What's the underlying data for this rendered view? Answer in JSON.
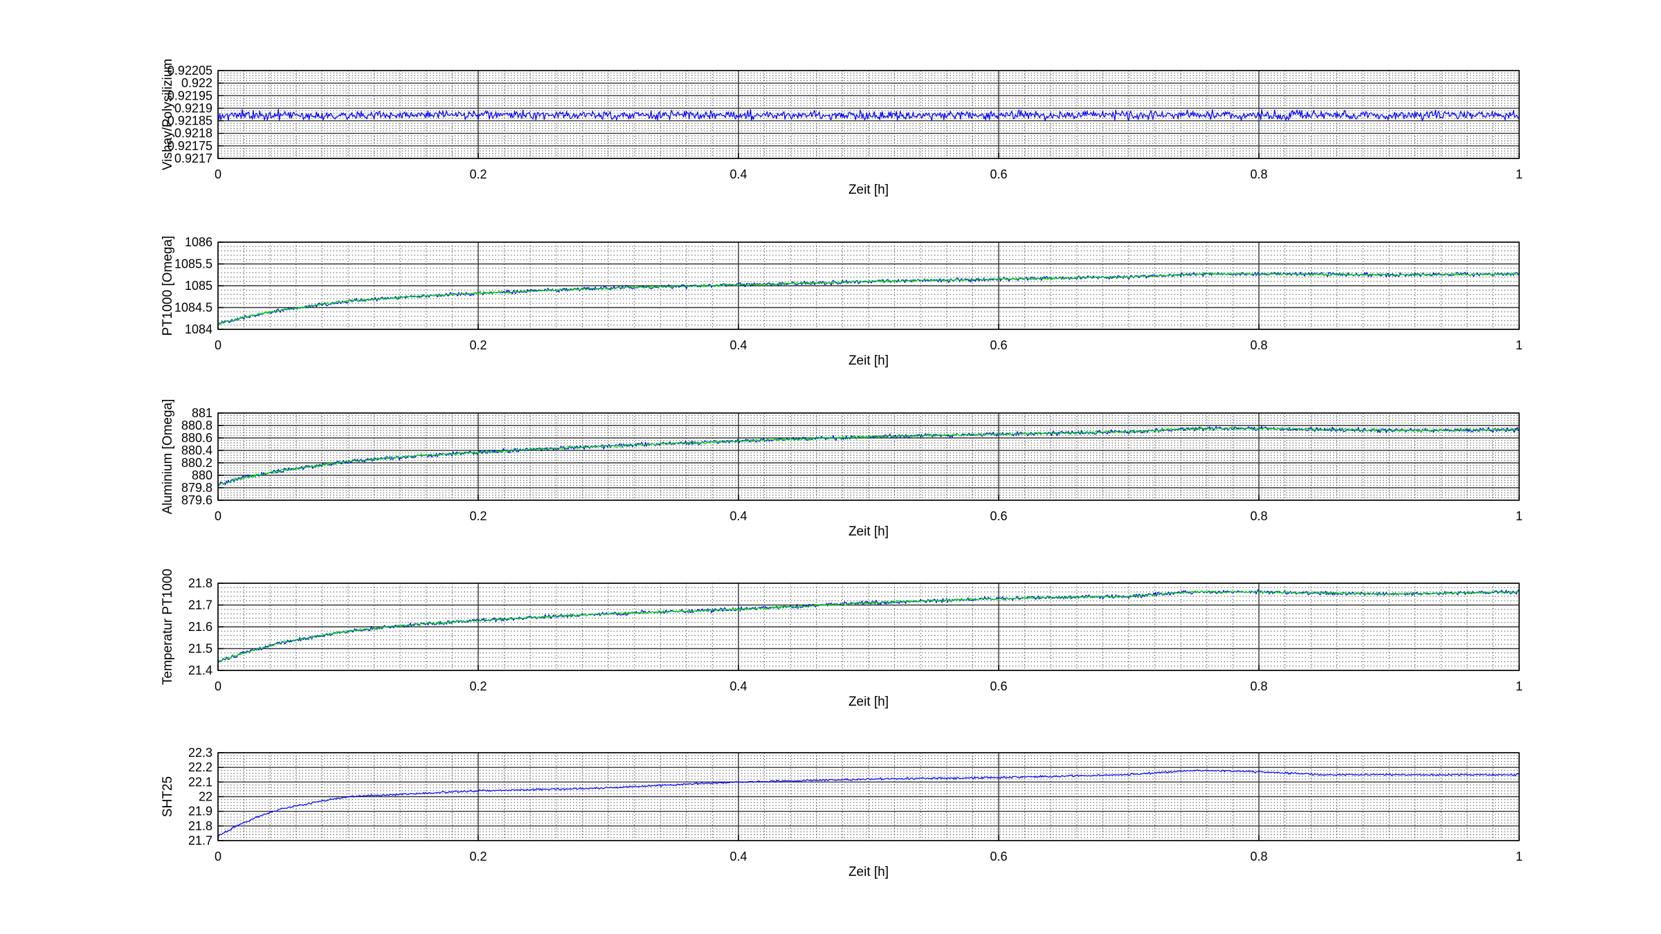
{
  "chart_data": [
    {
      "type": "line",
      "xlabel": "Zeit [h]",
      "ylabel": "Vishay/Polysilizium",
      "xlim": [
        0,
        1
      ],
      "ylim": [
        0.9217,
        0.92205
      ],
      "xticks": [
        "0",
        "0.2",
        "0.4",
        "0.6",
        "0.8",
        "1"
      ],
      "yticks": [
        "0.9217",
        "0.92175",
        "0.9218",
        "0.92185",
        "0.9219",
        "0.92195",
        "0.922",
        "0.92205"
      ],
      "grid": true,
      "series": [
        {
          "color": "#0000ff",
          "x": [
            0,
            0.1,
            0.2,
            0.3,
            0.4,
            0.5,
            0.6,
            0.7,
            0.8,
            0.9,
            1
          ],
          "y": [
            0.921872,
            0.921872,
            0.921873,
            0.921872,
            0.921873,
            0.921872,
            0.921872,
            0.921873,
            0.921873,
            0.921872,
            0.921872
          ],
          "noise": 1.6e-05
        }
      ]
    },
    {
      "type": "line",
      "xlabel": "Zeit [h]",
      "ylabel": "PT1000 [Omega]",
      "xlim": [
        0,
        1
      ],
      "ylim": [
        1084,
        1086
      ],
      "xticks": [
        "0",
        "0.2",
        "0.4",
        "0.6",
        "0.8",
        "1"
      ],
      "yticks": [
        "1084",
        "1084.5",
        "1085",
        "1085.5",
        "1086"
      ],
      "grid": true,
      "series": [
        {
          "color": "#0000ff",
          "x": [
            0,
            0.02,
            0.05,
            0.1,
            0.15,
            0.2,
            0.3,
            0.4,
            0.5,
            0.6,
            0.7,
            0.75,
            0.8,
            0.9,
            1
          ],
          "y": [
            1084.12,
            1084.28,
            1084.45,
            1084.65,
            1084.75,
            1084.83,
            1084.95,
            1085.02,
            1085.1,
            1085.15,
            1085.2,
            1085.27,
            1085.27,
            1085.25,
            1085.27
          ],
          "noise": 0.04
        },
        {
          "color": "#00dd00",
          "x": [
            0,
            0.02,
            0.05,
            0.1,
            0.15,
            0.2,
            0.3,
            0.4,
            0.5,
            0.6,
            0.7,
            0.75,
            0.8,
            0.9,
            1
          ],
          "y": [
            1084.12,
            1084.28,
            1084.45,
            1084.65,
            1084.75,
            1084.83,
            1084.95,
            1085.02,
            1085.1,
            1085.15,
            1085.2,
            1085.27,
            1085.27,
            1085.25,
            1085.27
          ],
          "noise": 0.025
        }
      ]
    },
    {
      "type": "line",
      "xlabel": "Zeit [h]",
      "ylabel": "Aluminium [Omega]",
      "xlim": [
        0,
        1
      ],
      "ylim": [
        879.6,
        881
      ],
      "xticks": [
        "0",
        "0.2",
        "0.4",
        "0.6",
        "0.8",
        "1"
      ],
      "yticks": [
        "879.6",
        "879.8",
        "880",
        "880.2",
        "880.4",
        "880.6",
        "880.8",
        "881"
      ],
      "grid": true,
      "series": [
        {
          "color": "#0000ff",
          "x": [
            0,
            0.02,
            0.05,
            0.1,
            0.15,
            0.2,
            0.3,
            0.4,
            0.5,
            0.6,
            0.7,
            0.75,
            0.8,
            0.9,
            1
          ],
          "y": [
            879.85,
            879.96,
            880.08,
            880.22,
            880.31,
            880.37,
            880.47,
            880.55,
            880.62,
            880.66,
            880.7,
            880.75,
            880.75,
            880.72,
            880.73
          ],
          "noise": 0.03
        },
        {
          "color": "#00dd00",
          "x": [
            0,
            0.02,
            0.05,
            0.1,
            0.15,
            0.2,
            0.3,
            0.4,
            0.5,
            0.6,
            0.7,
            0.75,
            0.8,
            0.9,
            1
          ],
          "y": [
            879.85,
            879.96,
            880.08,
            880.22,
            880.31,
            880.37,
            880.47,
            880.55,
            880.62,
            880.66,
            880.7,
            880.75,
            880.75,
            880.72,
            880.73
          ],
          "noise": 0.02
        }
      ]
    },
    {
      "type": "line",
      "xlabel": "Zeit [h]",
      "ylabel": "Temperatur PT1000",
      "xlim": [
        0,
        1
      ],
      "ylim": [
        21.4,
        21.8
      ],
      "xticks": [
        "0",
        "0.2",
        "0.4",
        "0.6",
        "0.8",
        "1"
      ],
      "yticks": [
        "21.4",
        "21.5",
        "21.6",
        "21.7",
        "21.8"
      ],
      "grid": true,
      "series": [
        {
          "color": "#0000ff",
          "x": [
            0,
            0.02,
            0.05,
            0.1,
            0.15,
            0.2,
            0.3,
            0.4,
            0.5,
            0.6,
            0.7,
            0.75,
            0.8,
            0.9,
            1
          ],
          "y": [
            21.44,
            21.48,
            21.53,
            21.58,
            21.61,
            21.63,
            21.66,
            21.68,
            21.71,
            21.73,
            21.74,
            21.76,
            21.76,
            21.75,
            21.76
          ],
          "noise": 0.008
        },
        {
          "color": "#00dd00",
          "x": [
            0,
            0.02,
            0.05,
            0.1,
            0.15,
            0.2,
            0.3,
            0.4,
            0.5,
            0.6,
            0.7,
            0.75,
            0.8,
            0.9,
            1
          ],
          "y": [
            21.44,
            21.48,
            21.53,
            21.58,
            21.61,
            21.63,
            21.66,
            21.68,
            21.71,
            21.73,
            21.74,
            21.76,
            21.76,
            21.75,
            21.76
          ],
          "noise": 0.005
        }
      ]
    },
    {
      "type": "line",
      "xlabel": "Zeit [h]",
      "ylabel": "SHT25",
      "xlim": [
        0,
        1
      ],
      "ylim": [
        21.7,
        22.3
      ],
      "xticks": [
        "0",
        "0.2",
        "0.4",
        "0.6",
        "0.8",
        "1"
      ],
      "yticks": [
        "21.7",
        "21.8",
        "21.9",
        "22",
        "22.1",
        "22.2",
        "22.3"
      ],
      "grid": true,
      "series": [
        {
          "color": "#0000ff",
          "x": [
            0,
            0.01,
            0.03,
            0.05,
            0.08,
            0.1,
            0.15,
            0.2,
            0.3,
            0.35,
            0.4,
            0.5,
            0.6,
            0.7,
            0.75,
            0.8,
            0.85,
            0.9,
            1
          ],
          "y": [
            21.73,
            21.78,
            21.86,
            21.92,
            21.97,
            22.0,
            22.02,
            22.04,
            22.06,
            22.08,
            22.1,
            22.12,
            22.13,
            22.15,
            22.18,
            22.17,
            22.15,
            22.15,
            22.15
          ],
          "noise": 0.006
        }
      ]
    }
  ]
}
